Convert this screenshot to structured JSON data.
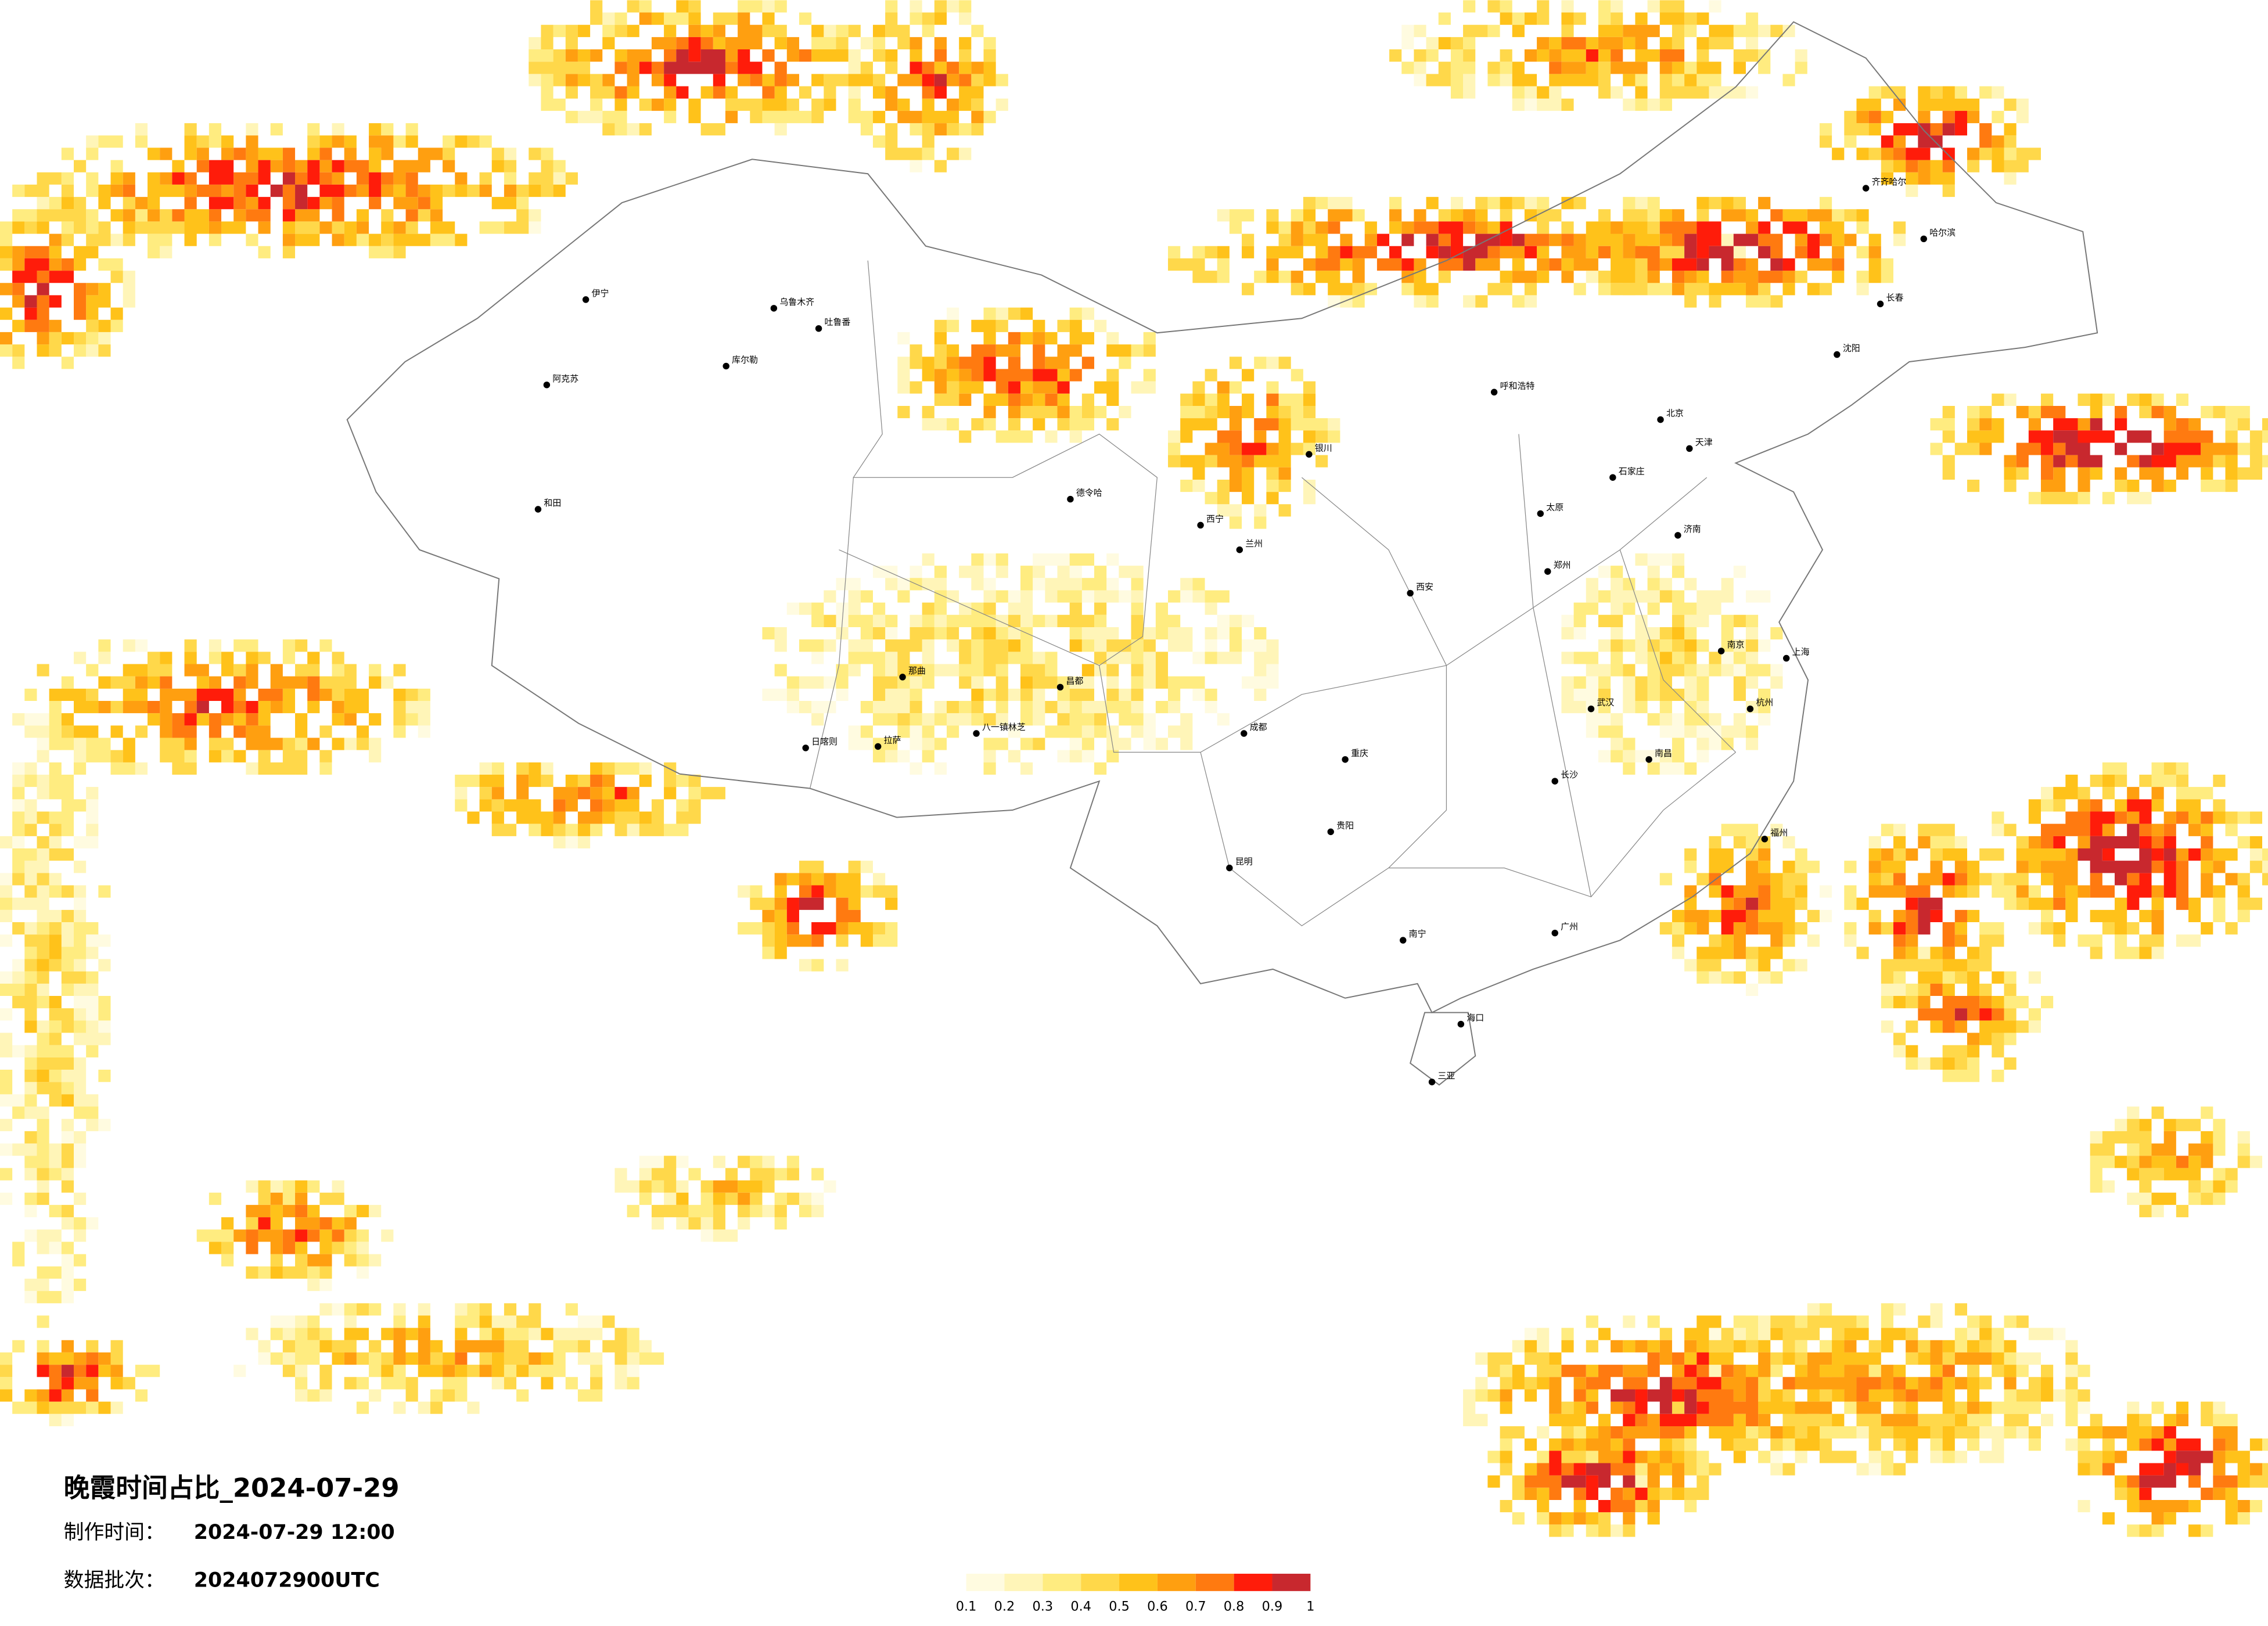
{
  "title": "晚霞时间占比_2024-07-29",
  "production_time": {
    "label": "制作时间：",
    "value": "2024-07-29 12:00"
  },
  "data_batch": {
    "label": "数据批次：",
    "value": "2024072900UTC"
  },
  "legend": {
    "ticks": [
      0.1,
      0.2,
      0.3,
      0.4,
      0.5,
      0.6,
      0.7,
      0.8,
      0.9,
      1
    ],
    "colors": [
      "#fffbe0",
      "#fff5b8",
      "#ffec80",
      "#ffd84a",
      "#ffc21a",
      "#ff9f10",
      "#ff7a10",
      "#ff1c0a",
      "#c8282e"
    ]
  },
  "cities": [
    "乌鲁木齐",
    "伊宁",
    "阿克苏",
    "和田",
    "库尔勒",
    "吐鲁番",
    "日喀则",
    "拉萨",
    "八一镇林芝",
    "那曲",
    "昌都",
    "德令哈",
    "西宁",
    "兰州",
    "银川",
    "呼和浩特",
    "北京",
    "天津",
    "石家庄",
    "太原",
    "济南",
    "郑州",
    "西安",
    "成都",
    "重庆",
    "贵阳",
    "昆明",
    "南宁",
    "广州",
    "海口",
    "三亚",
    "长沙",
    "武汉",
    "南昌",
    "杭州",
    "上海",
    "南京",
    "福州",
    "沈阳",
    "长春",
    "哈尔滨",
    "齐齐哈尔"
  ]
}
